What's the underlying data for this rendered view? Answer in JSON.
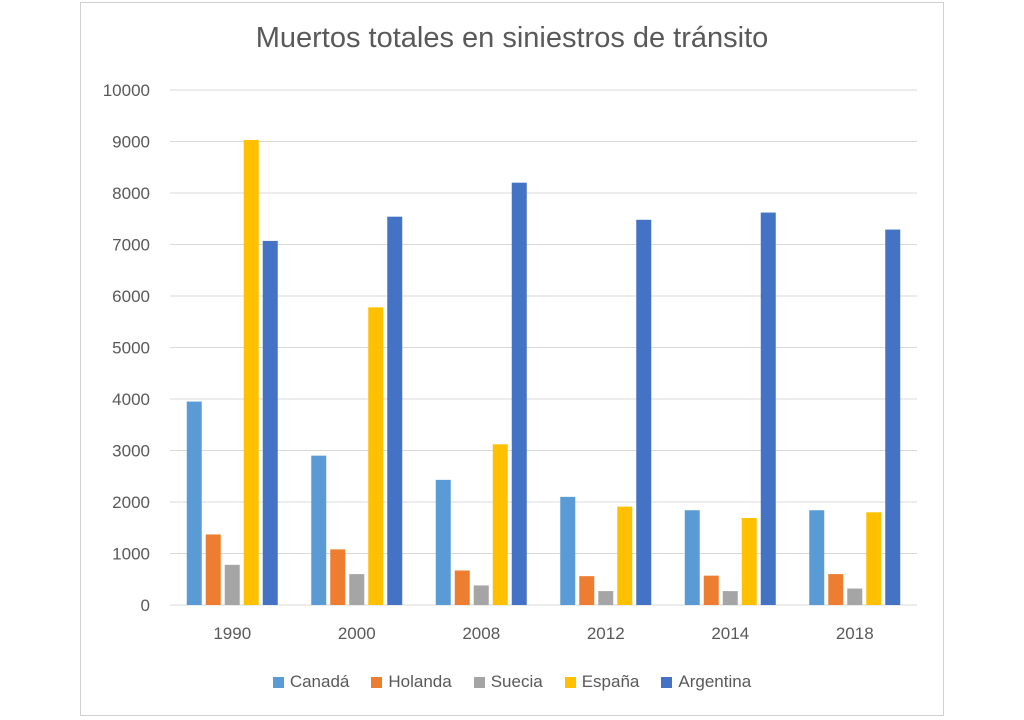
{
  "chart_data": {
    "type": "bar",
    "title": "Muertos totales en siniestros de tránsito",
    "xlabel": "",
    "ylabel": "",
    "categories": [
      "1990",
      "2000",
      "2008",
      "2012",
      "2014",
      "2018"
    ],
    "ylim": [
      0,
      10000
    ],
    "yticks": [
      "0",
      "1000",
      "2000",
      "3000",
      "4000",
      "5000",
      "6000",
      "7000",
      "8000",
      "9000",
      "10000"
    ],
    "grid": true,
    "legend_position": "bottom",
    "series": [
      {
        "name": "Canadá",
        "color": "#5b9bd5",
        "values": [
          3950,
          2900,
          2430,
          2100,
          1840,
          1840
        ]
      },
      {
        "name": "Holanda",
        "color": "#ed7d31",
        "values": [
          1370,
          1080,
          670,
          560,
          570,
          600
        ]
      },
      {
        "name": "Suecia",
        "color": "#a5a5a5",
        "values": [
          780,
          600,
          380,
          270,
          270,
          320
        ]
      },
      {
        "name": "España",
        "color": "#ffc000",
        "values": [
          9030,
          5780,
          3120,
          1910,
          1690,
          1800
        ]
      },
      {
        "name": "Argentina",
        "color": "#4472c4",
        "values": [
          7070,
          7540,
          8200,
          7480,
          7620,
          7290
        ]
      }
    ]
  }
}
